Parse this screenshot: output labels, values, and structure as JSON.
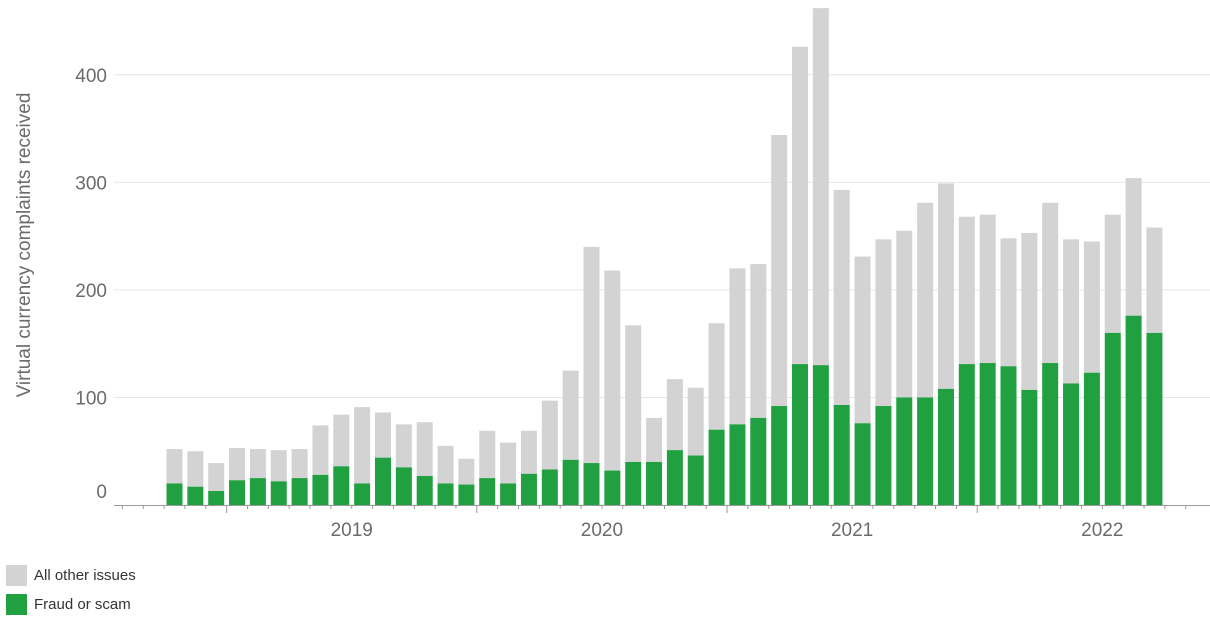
{
  "chart_data": {
    "type": "bar",
    "stacked": true,
    "ylabel": "Virtual currency complaints received",
    "ylim": [
      0,
      460
    ],
    "yticks": [
      0,
      100,
      200,
      300,
      400
    ],
    "xticks": [
      "2019",
      "2020",
      "2021",
      "2022"
    ],
    "grid": true,
    "legend_position": "bottom-left",
    "categories": [
      "2018-10",
      "2018-11",
      "2018-12",
      "2019-01",
      "2019-02",
      "2019-03",
      "2019-04",
      "2019-05",
      "2019-06",
      "2019-07",
      "2019-08",
      "2019-09",
      "2019-10",
      "2019-11",
      "2019-12",
      "2020-01",
      "2020-02",
      "2020-03",
      "2020-04",
      "2020-05",
      "2020-06",
      "2020-07",
      "2020-08",
      "2020-09",
      "2020-10",
      "2020-11",
      "2020-12",
      "2021-01",
      "2021-02",
      "2021-03",
      "2021-04",
      "2021-05",
      "2021-06",
      "2021-07",
      "2021-08",
      "2021-09",
      "2021-10",
      "2021-11",
      "2021-12",
      "2022-01",
      "2022-02",
      "2022-03",
      "2022-04",
      "2022-05",
      "2022-06",
      "2022-07",
      "2022-08",
      "2022-09"
    ],
    "series": [
      {
        "name": "Fraud or scam",
        "color": "#20a040",
        "values": [
          20,
          17,
          13,
          23,
          25,
          22,
          25,
          28,
          36,
          20,
          44,
          35,
          27,
          20,
          19,
          25,
          20,
          29,
          33,
          42,
          39,
          32,
          40,
          40,
          51,
          46,
          70,
          75,
          81,
          92,
          131,
          130,
          93,
          76,
          92,
          100,
          100,
          108,
          131,
          132,
          129,
          107,
          132,
          113,
          123,
          160,
          176,
          160
        ]
      },
      {
        "name": "All other issues",
        "color": "#d3d3d4",
        "values": [
          32,
          33,
          26,
          30,
          27,
          29,
          27,
          46,
          48,
          71,
          42,
          40,
          50,
          35,
          24,
          44,
          38,
          40,
          64,
          83,
          201,
          186,
          127,
          41,
          66,
          63,
          99,
          145,
          143,
          252,
          295,
          332,
          200,
          155,
          155,
          155,
          181,
          191,
          137,
          138,
          119,
          146,
          149,
          134,
          122,
          110,
          128,
          98
        ]
      }
    ]
  }
}
